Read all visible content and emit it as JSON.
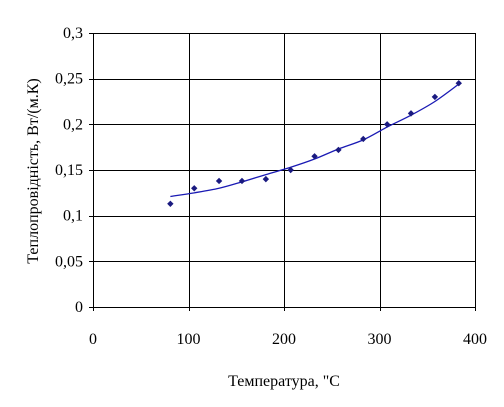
{
  "chart_data": {
    "type": "scatter",
    "xlabel": "Температура, \"С",
    "ylabel": "Теплопровідність, Вт/(м.К)",
    "xlim": [
      0,
      400
    ],
    "ylim": [
      0,
      0.3
    ],
    "x_ticks": [
      0,
      100,
      200,
      300,
      400
    ],
    "y_ticks": [
      0,
      0.05,
      0.1,
      0.15,
      0.2,
      0.25,
      0.3
    ],
    "x_tick_labels": [
      "0",
      "100",
      "200",
      "300",
      "400"
    ],
    "y_tick_labels": [
      "0",
      "0,05",
      "0,1",
      "0,15",
      "0,2",
      "0,25",
      "0,3"
    ],
    "grid": true,
    "colors": {
      "points": "#1a1a80",
      "trend": "#1a1ab4",
      "axes": "#000000"
    },
    "series": [
      {
        "x": [
          81,
          106,
          132,
          156,
          181,
          207,
          232,
          257,
          283,
          308,
          333,
          358,
          383
        ],
        "y": [
          0.113,
          0.13,
          0.138,
          0.138,
          0.14,
          0.15,
          0.165,
          0.172,
          0.184,
          0.2,
          0.212,
          0.23,
          0.245
        ]
      }
    ],
    "trendline": {
      "x": [
        81,
        106,
        132,
        156,
        181,
        207,
        232,
        257,
        283,
        308,
        333,
        358,
        383
      ],
      "y": [
        0.121,
        0.125,
        0.13,
        0.137,
        0.145,
        0.153,
        0.162,
        0.173,
        0.183,
        0.197,
        0.21,
        0.225,
        0.244
      ]
    }
  }
}
